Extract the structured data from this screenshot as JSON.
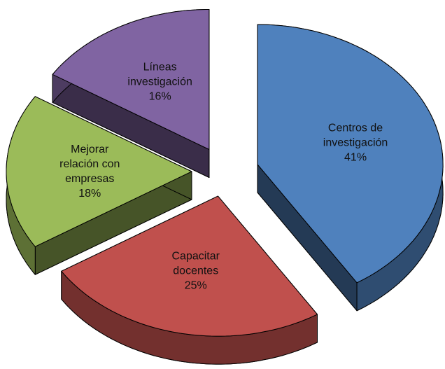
{
  "chart_data": {
    "type": "pie",
    "categories": [
      "Centros de investigación",
      "Capacitar docentes",
      "Mejorar relación con empresas",
      "Líneas investigación"
    ],
    "values": [
      41,
      25,
      18,
      16
    ],
    "value_labels": [
      "41%",
      "25%",
      "18%",
      "16%"
    ],
    "colors": [
      "#4f81bd",
      "#c0504d",
      "#9bbb59",
      "#8064a2"
    ]
  }
}
